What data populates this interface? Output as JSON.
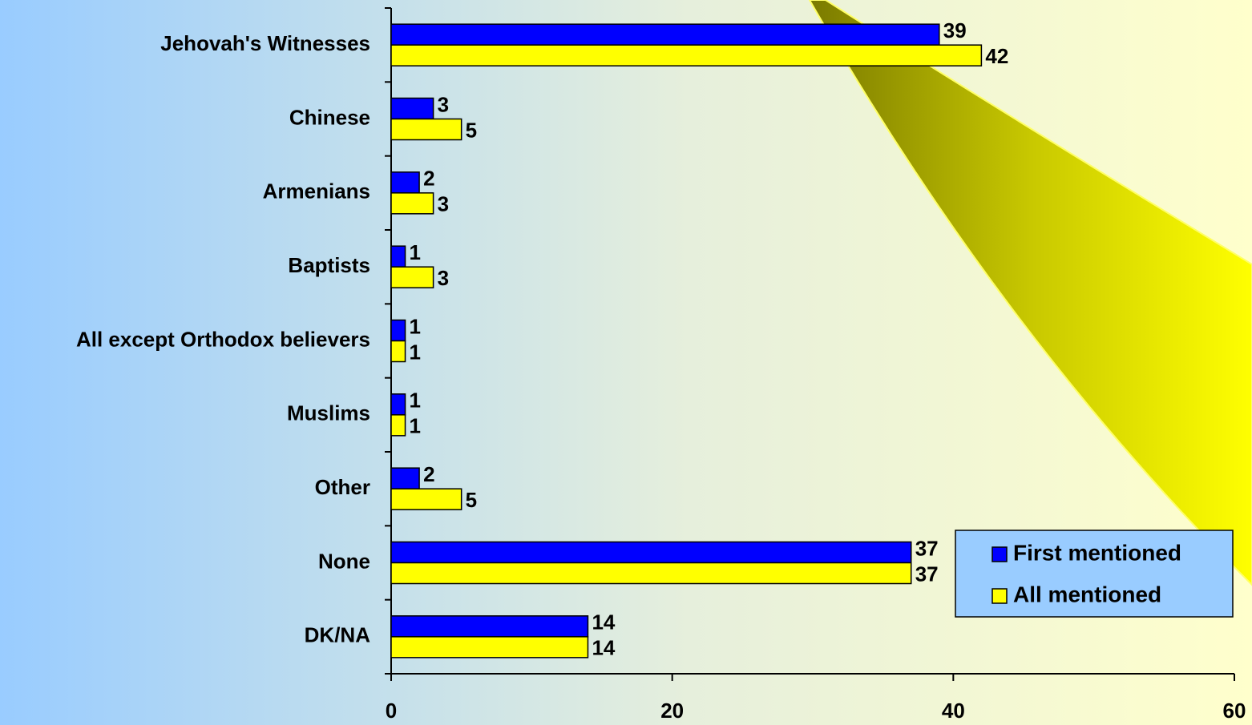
{
  "chart_data": {
    "type": "bar",
    "orientation": "horizontal",
    "categories": [
      "Jehovah's Witnesses",
      "Chinese",
      "Armenians",
      "Baptists",
      "All except Orthodox believers",
      "Muslims",
      "Other",
      "None",
      "DK/NA"
    ],
    "series": [
      {
        "name": "First mentioned",
        "color": "#0000ff",
        "values": [
          39,
          3,
          2,
          1,
          1,
          1,
          2,
          37,
          14
        ]
      },
      {
        "name": "All mentioned",
        "color": "#ffff00",
        "values": [
          42,
          5,
          3,
          3,
          1,
          1,
          5,
          37,
          14
        ]
      }
    ],
    "xlim": [
      0,
      60
    ],
    "xticks": [
      0,
      20,
      40,
      60
    ],
    "legend_position": "lower right"
  }
}
